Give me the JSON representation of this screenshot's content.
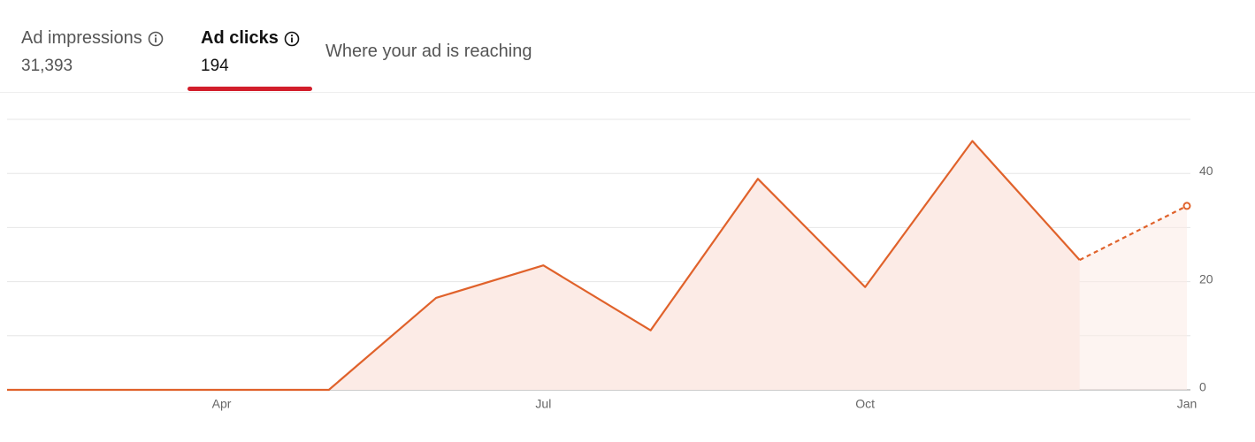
{
  "tabs": [
    {
      "label": "Ad impressions",
      "value": "31,393"
    },
    {
      "label": "Ad clicks",
      "value": "194"
    },
    {
      "label": "Where your ad is reaching"
    }
  ],
  "chart_data": {
    "type": "line",
    "categories": [
      null,
      null,
      "Apr",
      null,
      null,
      "Jul",
      null,
      null,
      "Oct",
      null,
      null,
      "Jan"
    ],
    "values": [
      0,
      0,
      0,
      0,
      17,
      23,
      11,
      39,
      19,
      46,
      24,
      34
    ],
    "color": "#e0622b",
    "area_color": "#fcebe6",
    "dashed_last_segment": true,
    "ylim": [
      0,
      50
    ],
    "yticks": [
      0,
      20,
      40
    ],
    "minor_yticks": [
      10,
      30,
      50
    ],
    "grid": true
  }
}
